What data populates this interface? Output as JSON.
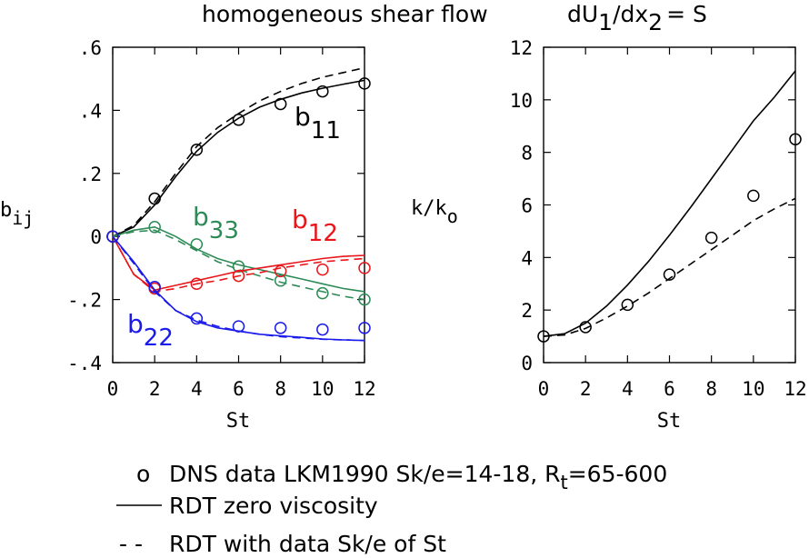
{
  "title": "homogeneous shear flow",
  "title_eq": {
    "base": "dU",
    "sub1": "1",
    "mid": "/dx",
    "sub2": "2",
    "tail": "= S"
  },
  "chart_data": [
    {
      "type": "line",
      "xlabel": "St",
      "ylabel": {
        "base": "b",
        "sub": "ij"
      },
      "xlim": [
        0,
        12
      ],
      "ylim": [
        -0.4,
        0.6
      ],
      "xticks": [
        "0",
        "2",
        "4",
        "6",
        "8",
        "10",
        "12"
      ],
      "yticks": [
        {
          "v": -0.4,
          "t": "-.4"
        },
        {
          "v": -0.2,
          "t": "-.2"
        },
        {
          "v": 0,
          "t": "0"
        },
        {
          "v": 0.2,
          "t": ".2"
        },
        {
          "v": 0.4,
          "t": ".4"
        },
        {
          "v": 0.6,
          "t": ".6"
        }
      ],
      "series": [
        {
          "name": "b11",
          "label": {
            "base": "b",
            "sub": "11"
          },
          "color": "#000000",
          "dns": [
            [
              0,
              0
            ],
            [
              2,
              0.12
            ],
            [
              4,
              0.275
            ],
            [
              6,
              0.37
            ],
            [
              8,
              0.42
            ],
            [
              10,
              0.46
            ],
            [
              12,
              0.485
            ]
          ],
          "rdt": [
            [
              0,
              0
            ],
            [
              1,
              0.03
            ],
            [
              2,
              0.1
            ],
            [
              3,
              0.19
            ],
            [
              4,
              0.27
            ],
            [
              5,
              0.33
            ],
            [
              6,
              0.375
            ],
            [
              7,
              0.41
            ],
            [
              8,
              0.435
            ],
            [
              9,
              0.455
            ],
            [
              10,
              0.47
            ],
            [
              11,
              0.483
            ],
            [
              12,
              0.495
            ]
          ],
          "rdt_data": [
            [
              0,
              0
            ],
            [
              1,
              0.035
            ],
            [
              2,
              0.11
            ],
            [
              3,
              0.2
            ],
            [
              4,
              0.285
            ],
            [
              5,
              0.345
            ],
            [
              6,
              0.39
            ],
            [
              7,
              0.43
            ],
            [
              8,
              0.46
            ],
            [
              9,
              0.485
            ],
            [
              10,
              0.505
            ],
            [
              11,
              0.52
            ],
            [
              12,
              0.535
            ]
          ]
        },
        {
          "name": "b33",
          "label": {
            "base": "b",
            "sub": "33"
          },
          "color": "#2e8b57",
          "dns": [
            [
              0,
              0
            ],
            [
              2,
              0.03
            ],
            [
              4,
              -0.025
            ],
            [
              6,
              -0.095
            ],
            [
              8,
              -0.14
            ],
            [
              10,
              -0.18
            ],
            [
              12,
              -0.2
            ]
          ],
          "rdt": [
            [
              0,
              0
            ],
            [
              1,
              0.02
            ],
            [
              2,
              0.03
            ],
            [
              3,
              0.0
            ],
            [
              4,
              -0.04
            ],
            [
              5,
              -0.07
            ],
            [
              6,
              -0.09
            ],
            [
              7,
              -0.105
            ],
            [
              8,
              -0.12
            ],
            [
              9,
              -0.135
            ],
            [
              10,
              -0.15
            ],
            [
              11,
              -0.165
            ],
            [
              12,
              -0.175
            ]
          ],
          "rdt_data": [
            [
              0,
              0
            ],
            [
              1,
              0.015
            ],
            [
              2,
              0.02
            ],
            [
              3,
              -0.01
            ],
            [
              4,
              -0.045
            ],
            [
              5,
              -0.08
            ],
            [
              6,
              -0.105
            ],
            [
              7,
              -0.125
            ],
            [
              8,
              -0.145
            ],
            [
              9,
              -0.16
            ],
            [
              10,
              -0.175
            ],
            [
              11,
              -0.19
            ],
            [
              12,
              -0.2
            ]
          ]
        },
        {
          "name": "b12",
          "label": {
            "base": "b",
            "sub": "12"
          },
          "color": "#e8161b",
          "dns": [
            [
              0,
              0
            ],
            [
              2,
              -0.165
            ],
            [
              4,
              -0.15
            ],
            [
              6,
              -0.125
            ],
            [
              8,
              -0.11
            ],
            [
              10,
              -0.105
            ],
            [
              12,
              -0.1
            ]
          ],
          "rdt": [
            [
              0,
              0
            ],
            [
              1,
              -0.12
            ],
            [
              2,
              -0.17
            ],
            [
              3,
              -0.155
            ],
            [
              4,
              -0.14
            ],
            [
              5,
              -0.125
            ],
            [
              6,
              -0.11
            ],
            [
              7,
              -0.1
            ],
            [
              8,
              -0.09
            ],
            [
              9,
              -0.08
            ],
            [
              10,
              -0.07
            ],
            [
              11,
              -0.063
            ],
            [
              12,
              -0.06
            ]
          ],
          "rdt_data": [
            [
              0,
              0
            ],
            [
              1,
              -0.12
            ],
            [
              2,
              -0.175
            ],
            [
              3,
              -0.165
            ],
            [
              4,
              -0.15
            ],
            [
              5,
              -0.14
            ],
            [
              6,
              -0.125
            ],
            [
              7,
              -0.115
            ],
            [
              8,
              -0.1
            ],
            [
              9,
              -0.09
            ],
            [
              10,
              -0.08
            ],
            [
              11,
              -0.075
            ],
            [
              12,
              -0.07
            ]
          ]
        },
        {
          "name": "b22",
          "label": {
            "base": "b",
            "sub": "22"
          },
          "color": "#1a1aeb",
          "dns": [
            [
              0,
              0
            ],
            [
              2,
              -0.16
            ],
            [
              4,
              -0.26
            ],
            [
              6,
              -0.285
            ],
            [
              8,
              -0.29
            ],
            [
              10,
              -0.295
            ],
            [
              12,
              -0.29
            ]
          ],
          "rdt": [
            [
              0,
              0
            ],
            [
              1,
              -0.08
            ],
            [
              2,
              -0.17
            ],
            [
              3,
              -0.235
            ],
            [
              4,
              -0.27
            ],
            [
              5,
              -0.29
            ],
            [
              6,
              -0.3
            ],
            [
              7,
              -0.31
            ],
            [
              8,
              -0.315
            ],
            [
              9,
              -0.32
            ],
            [
              10,
              -0.325
            ],
            [
              11,
              -0.328
            ],
            [
              12,
              -0.33
            ]
          ],
          "rdt_data": [
            [
              0,
              0
            ],
            [
              1,
              -0.085
            ],
            [
              2,
              -0.175
            ],
            [
              3,
              -0.235
            ],
            [
              4,
              -0.265
            ],
            [
              5,
              -0.285
            ],
            [
              6,
              -0.3
            ],
            [
              7,
              -0.31
            ],
            [
              8,
              -0.318
            ],
            [
              9,
              -0.322
            ],
            [
              10,
              -0.326
            ],
            [
              11,
              -0.328
            ],
            [
              12,
              -0.33
            ]
          ]
        }
      ]
    },
    {
      "type": "line",
      "xlabel": "St",
      "ylabel": {
        "base": "k/k",
        "sub": "o"
      },
      "xlim": [
        0,
        12
      ],
      "ylim": [
        0,
        12
      ],
      "xticks": [
        "0",
        "2",
        "4",
        "6",
        "8",
        "10",
        "12"
      ],
      "yticks": [
        {
          "v": 0,
          "t": "0"
        },
        {
          "v": 2,
          "t": "2"
        },
        {
          "v": 4,
          "t": "4"
        },
        {
          "v": 6,
          "t": "6"
        },
        {
          "v": 8,
          "t": "8"
        },
        {
          "v": 10,
          "t": "10"
        },
        {
          "v": 12,
          "t": "12"
        }
      ],
      "series": [
        {
          "name": "k",
          "color": "#000000",
          "dns": [
            [
              0,
              1
            ],
            [
              2,
              1.35
            ],
            [
              4,
              2.2
            ],
            [
              6,
              3.35
            ],
            [
              8,
              4.75
            ],
            [
              10,
              6.35
            ],
            [
              12,
              8.5
            ]
          ],
          "rdt": [
            [
              0,
              1
            ],
            [
              1,
              1.1
            ],
            [
              2,
              1.5
            ],
            [
              3,
              2.15
            ],
            [
              4,
              2.95
            ],
            [
              5,
              3.85
            ],
            [
              6,
              4.85
            ],
            [
              7,
              5.9
            ],
            [
              8,
              7.0
            ],
            [
              9,
              8.1
            ],
            [
              10,
              9.2
            ],
            [
              11,
              10.1
            ],
            [
              12,
              11.1
            ]
          ],
          "rdt_data": [
            [
              0,
              1
            ],
            [
              1,
              1.05
            ],
            [
              2,
              1.3
            ],
            [
              3,
              1.7
            ],
            [
              4,
              2.15
            ],
            [
              5,
              2.65
            ],
            [
              6,
              3.2
            ],
            [
              7,
              3.75
            ],
            [
              8,
              4.3
            ],
            [
              9,
              4.85
            ],
            [
              10,
              5.4
            ],
            [
              11,
              5.85
            ],
            [
              12,
              6.25
            ]
          ]
        }
      ]
    }
  ],
  "legend": [
    {
      "symbol": "o",
      "text": "DNS data LKM1990  Sk/e=14-18, R",
      "sub": "t",
      "tail": "=65-600"
    },
    {
      "symbol": "solid",
      "text": "RDT zero viscosity"
    },
    {
      "symbol": "- -",
      "text": "RDT with data Sk/e of St"
    }
  ]
}
